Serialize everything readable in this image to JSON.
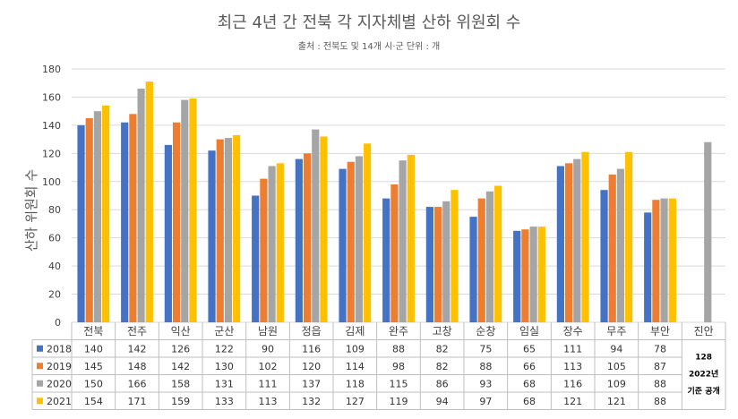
{
  "chart_data": {
    "type": "bar",
    "title": "최근 4년 간 전북 각 지자체별 산하 위원회 수",
    "subtitle": "출처 : 전북도 및 14개 시·군 단위 : 개",
    "ylabel": "산하 위원회 수",
    "xlabel": "",
    "ylim": [
      0,
      180
    ],
    "yticks": [
      0,
      20,
      40,
      60,
      80,
      100,
      120,
      140,
      160,
      180
    ],
    "grid": true,
    "legend": "data-table",
    "categories": [
      "전북",
      "전주",
      "익산",
      "군산",
      "남원",
      "정읍",
      "김제",
      "완주",
      "고창",
      "순창",
      "임실",
      "장수",
      "무주",
      "부안",
      "진안"
    ],
    "series": [
      {
        "name": "2018",
        "color": "#4472c4",
        "values": [
          140,
          142,
          126,
          122,
          90,
          116,
          109,
          88,
          82,
          75,
          65,
          111,
          94,
          78,
          null
        ]
      },
      {
        "name": "2019",
        "color": "#ed7d31",
        "values": [
          145,
          148,
          142,
          130,
          102,
          120,
          114,
          98,
          82,
          88,
          66,
          113,
          105,
          87,
          null
        ]
      },
      {
        "name": "2020",
        "color": "#a5a5a5",
        "values": [
          150,
          166,
          158,
          131,
          111,
          137,
          118,
          115,
          86,
          93,
          68,
          116,
          109,
          88,
          128
        ]
      },
      {
        "name": "2021",
        "color": "#ffc000",
        "values": [
          154,
          171,
          159,
          133,
          113,
          132,
          127,
          119,
          94,
          97,
          68,
          121,
          121,
          88,
          null
        ]
      }
    ],
    "annotation": {
      "value": "128",
      "line1": "2022년",
      "line2": "기준 공개"
    }
  }
}
